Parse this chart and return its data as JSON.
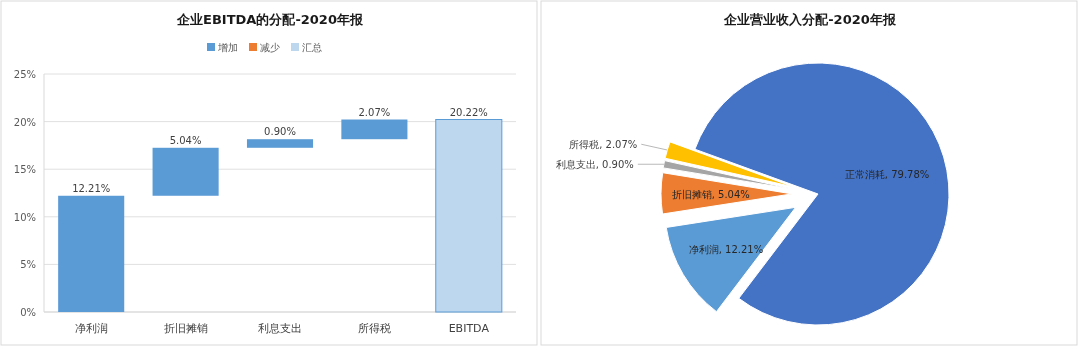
{
  "chart_data": [
    {
      "type": "bar",
      "title": "企业EBITDA的分配-2020年报",
      "categories": [
        "净利润",
        "折旧摊销",
        "利息支出",
        "所得税",
        "EBITDA"
      ],
      "series": [
        {
          "name": "增加",
          "color": "#5b9bd5",
          "values": [
            12.21,
            5.04,
            0.9,
            2.07,
            null
          ],
          "base": [
            0,
            12.21,
            17.25,
            18.15,
            null
          ]
        },
        {
          "name": "减少",
          "color": "#ed7d31",
          "values": [
            null,
            null,
            null,
            null,
            null
          ]
        },
        {
          "name": "汇总",
          "color": "#bdd7ee",
          "values": [
            null,
            null,
            null,
            null,
            20.22
          ]
        }
      ],
      "value_labels": [
        "12.21%",
        "5.04%",
        "0.90%",
        "2.07%",
        "20.22%"
      ],
      "ylim": [
        0,
        25
      ],
      "yticks": [
        {
          "value": 0,
          "label": "0%"
        },
        {
          "value": 5,
          "label": "5%"
        },
        {
          "value": 10,
          "label": "10%"
        },
        {
          "value": 15,
          "label": "15%"
        },
        {
          "value": 20,
          "label": "20%"
        },
        {
          "value": 25,
          "label": "25%"
        }
      ],
      "grid": "y",
      "legend": "top"
    },
    {
      "type": "pie",
      "title": "企业营业收入分配-2020年报",
      "categories": [
        "正常消耗",
        "净利润",
        "折旧摊销",
        "利息支出",
        "所得税"
      ],
      "values": [
        79.78,
        12.21,
        5.04,
        0.9,
        2.07
      ],
      "colors": [
        "#4472c4",
        "#5b9bd5",
        "#ed7d31",
        "#a5a5a5",
        "#ffc000"
      ],
      "value_labels": [
        "79.78%",
        "12.21%",
        "5.04%",
        "0.90%",
        "2.07%"
      ]
    }
  ]
}
